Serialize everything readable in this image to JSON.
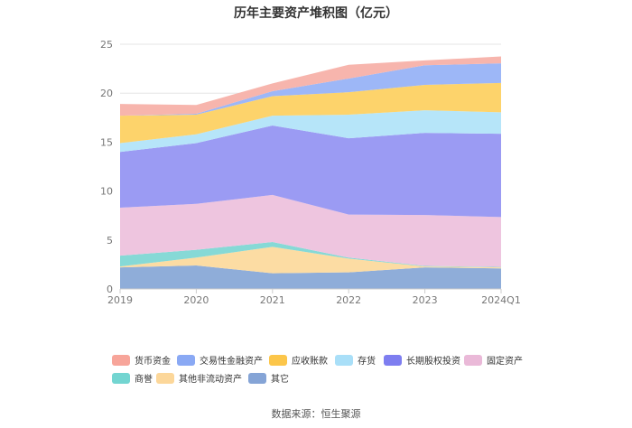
{
  "page": {
    "title": "历年主要资产堆积图（亿元）",
    "source": "数据来源：恒生聚源"
  },
  "chart_data": {
    "type": "area",
    "stacked": true,
    "title": "历年主要资产堆积图（亿元）",
    "xlabel": "",
    "ylabel": "",
    "categories": [
      "2019",
      "2020",
      "2021",
      "2022",
      "2023",
      "2024Q1"
    ],
    "ylim": [
      0,
      25
    ],
    "yticks": [
      0,
      5,
      10,
      15,
      20,
      25
    ],
    "grid": true,
    "legend_position": "bottom",
    "series": [
      {
        "name": "其它",
        "color": "#8fadd9",
        "values": [
          2.2,
          2.4,
          1.6,
          1.7,
          2.2,
          2.1
        ]
      },
      {
        "name": "其他非流动资产",
        "color": "#fcdca3",
        "values": [
          0.1,
          0.8,
          2.7,
          1.4,
          0.1,
          0.1
        ]
      },
      {
        "name": "商誉",
        "color": "#86d9d6",
        "values": [
          1.1,
          0.8,
          0.5,
          0.1,
          0.05,
          0.05
        ]
      },
      {
        "name": "固定资产",
        "color": "#eec5df",
        "values": [
          4.9,
          4.7,
          4.8,
          4.4,
          5.2,
          5.1
        ]
      },
      {
        "name": "长期股权投资",
        "color": "#9b9bf3",
        "values": [
          5.7,
          6.2,
          7.1,
          7.8,
          8.4,
          8.5
        ]
      },
      {
        "name": "存货",
        "color": "#b6e5f9",
        "values": [
          0.9,
          0.9,
          1.0,
          2.4,
          2.3,
          2.2
        ]
      },
      {
        "name": "应收账款",
        "color": "#fdd36b",
        "values": [
          2.8,
          2.0,
          2.0,
          2.3,
          2.6,
          3.0
        ]
      },
      {
        "name": "交易性金融资产",
        "color": "#9db7f7",
        "values": [
          0.0,
          0.1,
          0.5,
          1.4,
          2.0,
          2.0
        ]
      },
      {
        "name": "货币资金",
        "color": "#f7b5ad",
        "values": [
          1.2,
          0.9,
          0.8,
          1.4,
          0.5,
          0.7
        ]
      }
    ]
  },
  "legend": [
    {
      "label": "货币资金",
      "color": "#f7a59a"
    },
    {
      "label": "交易性金融资产",
      "color": "#8aa9f4"
    },
    {
      "label": "应收账款",
      "color": "#fcc64a"
    },
    {
      "label": "存货",
      "color": "#a9dff8"
    },
    {
      "label": "长期股权投资",
      "color": "#7e7ef0"
    },
    {
      "label": "固定资产",
      "color": "#eab9d8"
    },
    {
      "label": "商誉",
      "color": "#73d5d1"
    },
    {
      "label": "其他非流动资产",
      "color": "#fcd79a"
    },
    {
      "label": "其它",
      "color": "#85a4d6"
    }
  ]
}
